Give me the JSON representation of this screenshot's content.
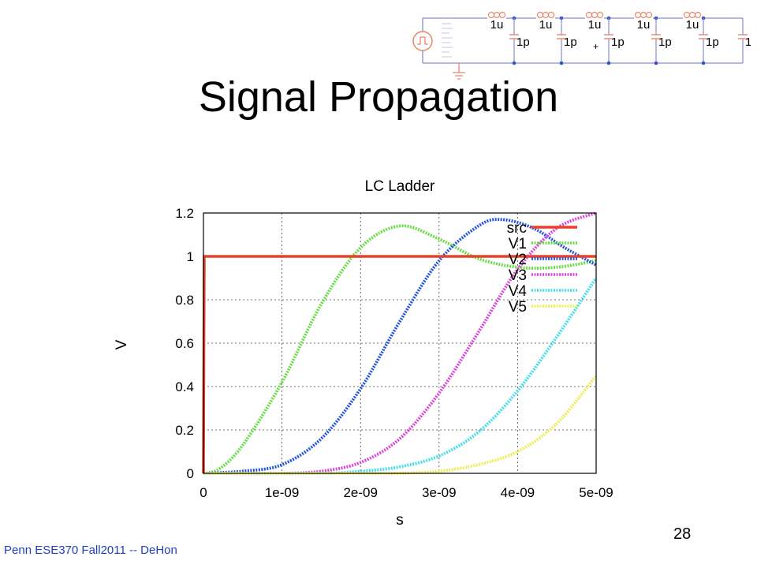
{
  "slide": {
    "title": "Signal Propagation",
    "footer": "Penn ESE370 Fall2011 -- DeHon",
    "page_number": "28"
  },
  "schematic": {
    "inductor_label": "1u",
    "capacitor_label": "1p",
    "plus_sign": "+",
    "source_icon": "pulse-source-icon",
    "ground_icon": "ground-icon"
  },
  "chart_data": {
    "type": "line",
    "title": "LC Ladder",
    "xlabel": "s",
    "ylabel": "V",
    "xlim": [
      0,
      5e-09
    ],
    "ylim": [
      0,
      1.2
    ],
    "xticks": [
      "0",
      "1e-09",
      "2e-09",
      "3e-09",
      "4e-09",
      "5e-09"
    ],
    "yticks": [
      "0",
      "0.2",
      "0.4",
      "0.6",
      "0.8",
      "1",
      "1.2"
    ],
    "grid": true,
    "legend_position": "top-right",
    "series": [
      {
        "name": "src",
        "color": "#e8402a",
        "style": "solid",
        "x": [
          0,
          1e-11,
          5e-09
        ],
        "y": [
          0,
          1.0,
          1.0
        ]
      },
      {
        "name": "V1",
        "color": "#66dd44",
        "style": "dotted",
        "x": [
          0,
          2e-10,
          5e-10,
          1e-09,
          1.5e-09,
          2e-09,
          2.5e-09,
          3e-09,
          3.5e-09,
          4e-09,
          4.5e-09,
          5e-09
        ],
        "y": [
          0,
          0.02,
          0.13,
          0.42,
          0.78,
          1.04,
          1.14,
          1.08,
          0.99,
          0.95,
          0.95,
          0.98
        ]
      },
      {
        "name": "V2",
        "color": "#2255dd",
        "style": "dotted",
        "x": [
          0,
          5e-10,
          1e-09,
          1.5e-09,
          2e-09,
          2.5e-09,
          3e-09,
          3.5e-09,
          3.8e-09,
          4.2e-09,
          4.6e-09,
          5e-09
        ],
        "y": [
          0,
          0.01,
          0.04,
          0.16,
          0.39,
          0.7,
          0.98,
          1.14,
          1.17,
          1.13,
          1.04,
          0.96
        ]
      },
      {
        "name": "V3",
        "color": "#dd44dd",
        "style": "dotted",
        "x": [
          0,
          1e-09,
          1.5e-09,
          2e-09,
          2.5e-09,
          3e-09,
          3.5e-09,
          4e-09,
          4.5e-09,
          5e-09
        ],
        "y": [
          0,
          0.0,
          0.01,
          0.05,
          0.16,
          0.37,
          0.65,
          0.94,
          1.13,
          1.2
        ]
      },
      {
        "name": "V4",
        "color": "#44ddee",
        "style": "dotted",
        "x": [
          0,
          1.5e-09,
          2e-09,
          2.5e-09,
          3e-09,
          3.5e-09,
          4e-09,
          4.5e-09,
          5e-09
        ],
        "y": [
          0,
          0.0,
          0.01,
          0.03,
          0.08,
          0.19,
          0.38,
          0.63,
          0.9
        ]
      },
      {
        "name": "V5",
        "color": "#eeee55",
        "style": "dotted",
        "x": [
          0,
          2e-09,
          2.5e-09,
          3e-09,
          3.5e-09,
          4e-09,
          4.5e-09,
          5e-09
        ],
        "y": [
          0,
          0.0,
          0.0,
          0.01,
          0.04,
          0.1,
          0.23,
          0.45
        ]
      }
    ]
  }
}
